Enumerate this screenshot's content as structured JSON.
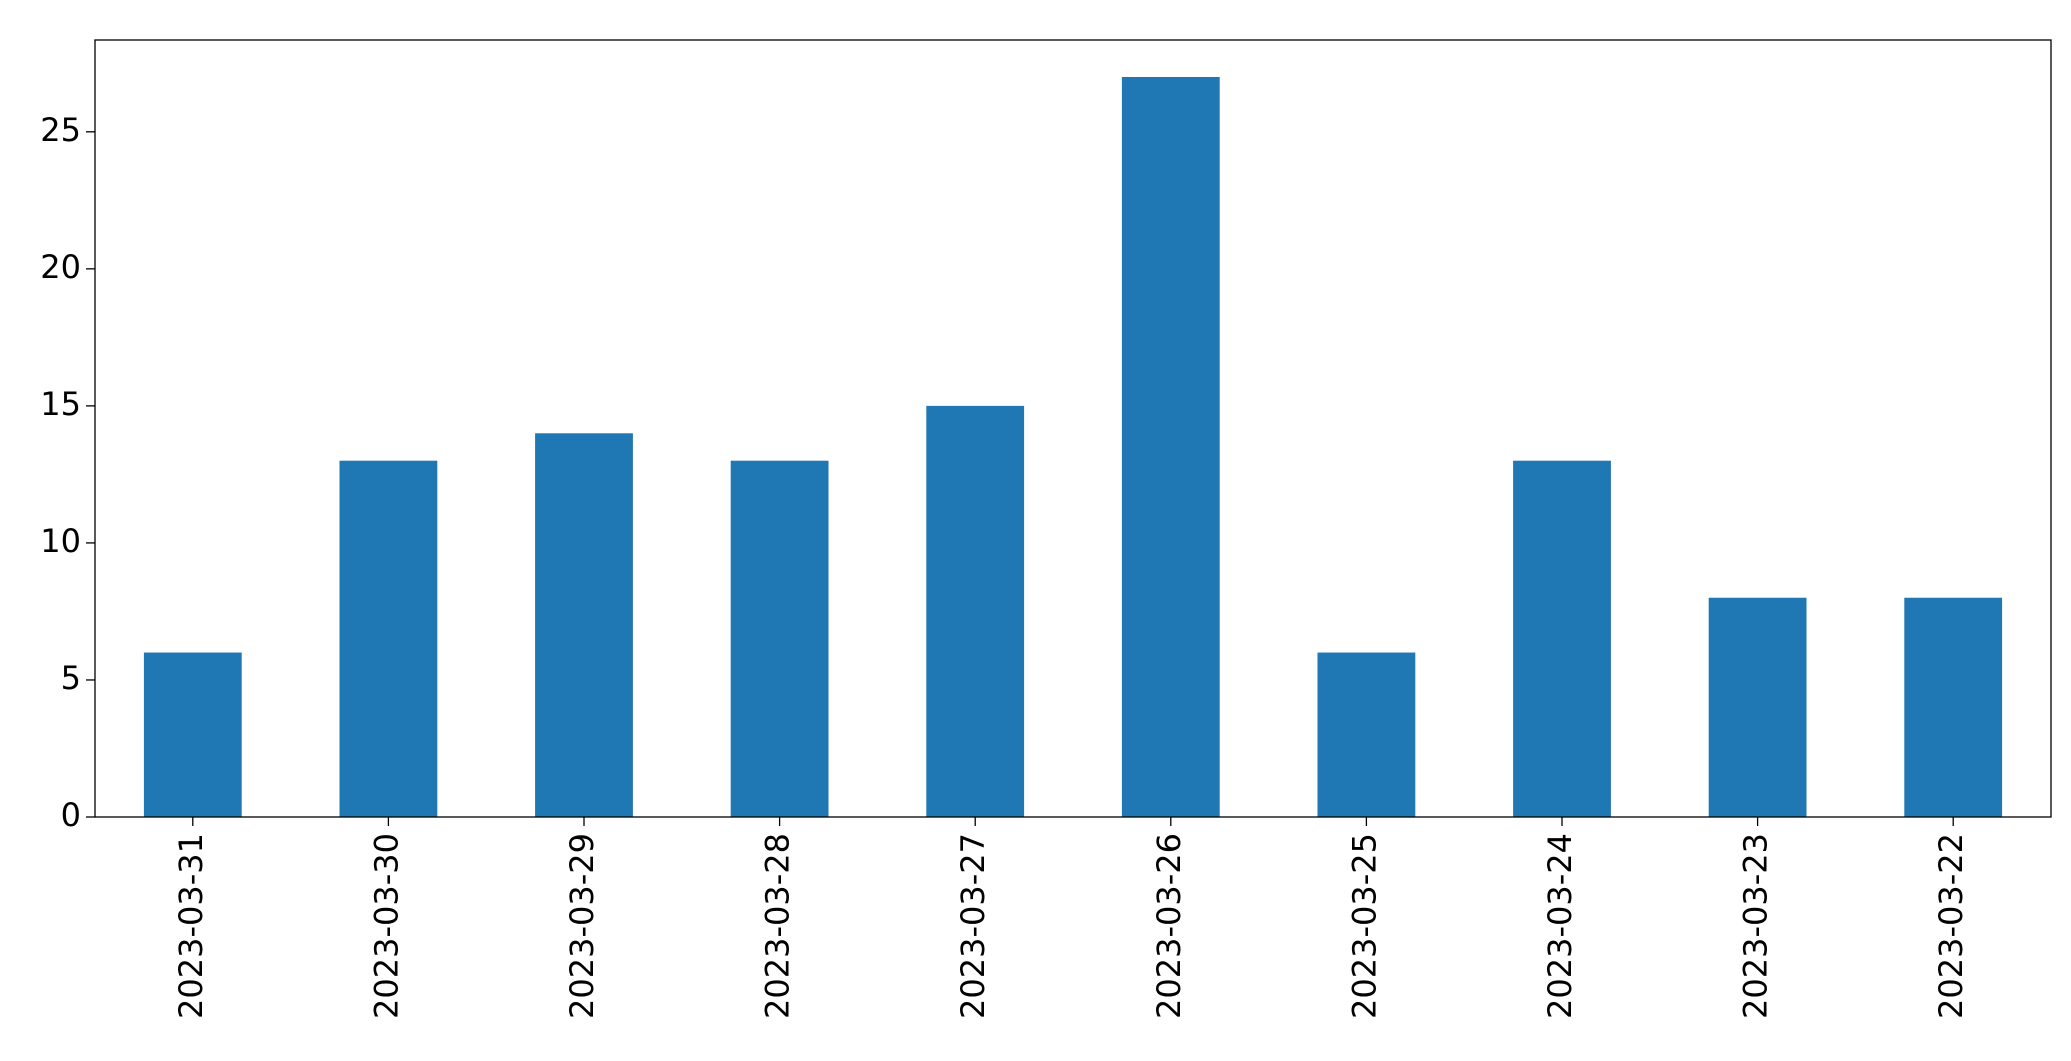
{
  "chart_data": {
    "type": "bar",
    "categories": [
      "2023-03-31",
      "2023-03-30",
      "2023-03-29",
      "2023-03-28",
      "2023-03-27",
      "2023-03-26",
      "2023-03-25",
      "2023-03-24",
      "2023-03-23",
      "2023-03-22"
    ],
    "values": [
      6,
      13,
      14,
      13,
      15,
      27,
      6,
      13,
      8,
      8
    ],
    "color": "#1f77b4",
    "ylim": [
      0,
      28.35
    ],
    "yticks": [
      0,
      5,
      10,
      15,
      20,
      25
    ],
    "grid": false
  }
}
